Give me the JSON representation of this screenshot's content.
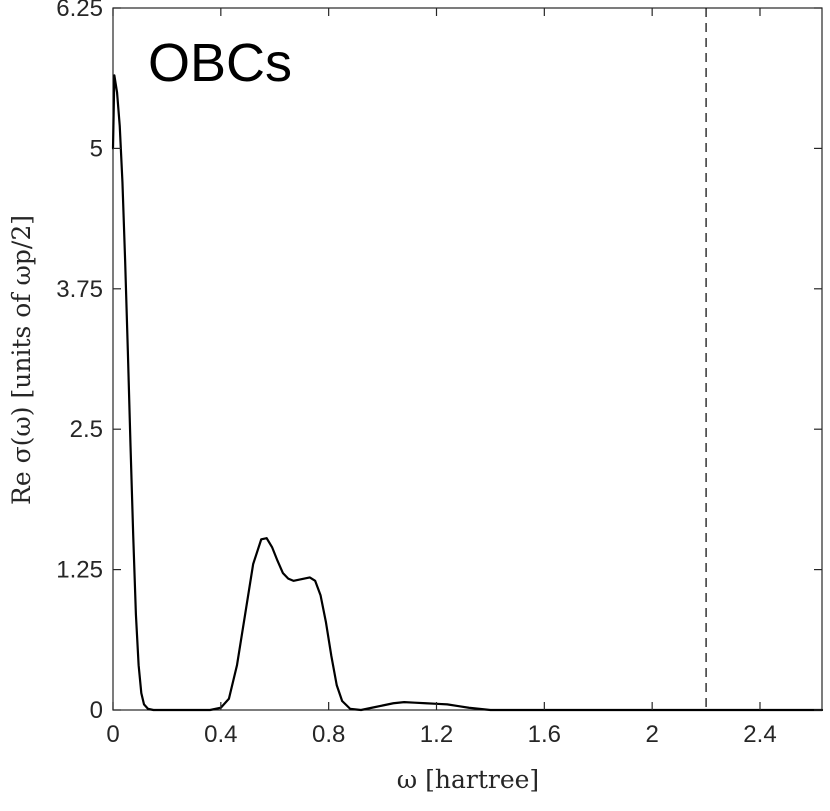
{
  "chart_data": {
    "type": "line",
    "title": "",
    "panel_label": "OBCs",
    "xlabel": "ω [hartree]",
    "ylabel": "Re σ(ω) [units of ωp/2]",
    "xlim": [
      0,
      2.63
    ],
    "ylim": [
      0,
      6.25
    ],
    "xticks": [
      0,
      0.4,
      0.8,
      1.2,
      1.6,
      2,
      2.4
    ],
    "xtick_labels": [
      "0",
      "0.4",
      "0.8",
      "1.2",
      "1.6",
      "2",
      "2.4"
    ],
    "yticks": [
      0,
      1.25,
      2.5,
      3.75,
      5,
      6.25
    ],
    "ytick_labels": [
      "0",
      "1.25",
      "2.5",
      "3.75",
      "5",
      "6.25"
    ],
    "grid": false,
    "box": true,
    "series": [
      {
        "color": "#000000",
        "style": "solid",
        "x": [
          0.0,
          0.005,
          0.015,
          0.025,
          0.035,
          0.045,
          0.055,
          0.065,
          0.075,
          0.085,
          0.095,
          0.105,
          0.115,
          0.13,
          0.15,
          0.2,
          0.3,
          0.36,
          0.4,
          0.43,
          0.46,
          0.49,
          0.52,
          0.55,
          0.57,
          0.59,
          0.61,
          0.63,
          0.65,
          0.67,
          0.69,
          0.71,
          0.73,
          0.75,
          0.77,
          0.79,
          0.81,
          0.83,
          0.85,
          0.88,
          0.92,
          0.96,
          1.0,
          1.04,
          1.08,
          1.12,
          1.16,
          1.2,
          1.24,
          1.28,
          1.32,
          1.36,
          1.4,
          1.5,
          1.7,
          2.0,
          2.3,
          2.63
        ],
        "y": [
          5.0,
          5.65,
          5.5,
          5.2,
          4.7,
          4.0,
          3.2,
          2.35,
          1.55,
          0.85,
          0.4,
          0.15,
          0.05,
          0.01,
          0.0,
          0.0,
          0.0,
          0.0,
          0.02,
          0.1,
          0.4,
          0.85,
          1.3,
          1.52,
          1.53,
          1.45,
          1.33,
          1.22,
          1.17,
          1.15,
          1.16,
          1.17,
          1.18,
          1.15,
          1.02,
          0.78,
          0.48,
          0.22,
          0.08,
          0.01,
          0.0,
          0.02,
          0.04,
          0.06,
          0.07,
          0.065,
          0.06,
          0.055,
          0.05,
          0.035,
          0.02,
          0.01,
          0.0,
          0.0,
          0.0,
          0.0,
          0.0,
          0.0
        ]
      }
    ],
    "reference_lines": [
      {
        "orientation": "vertical",
        "x": 2.2,
        "style": "dashed",
        "color": "#000000"
      }
    ]
  }
}
